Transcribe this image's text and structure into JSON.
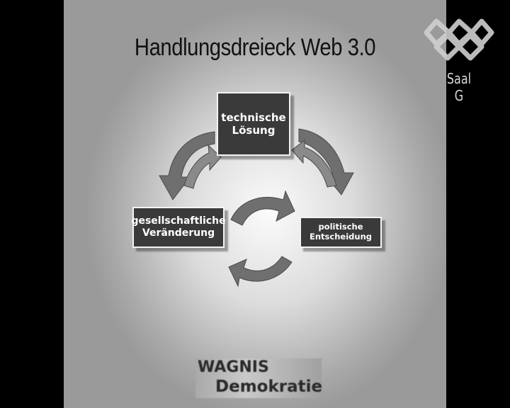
{
  "slide": {
    "title": "Handlungsdreieck Web 3.0",
    "boxes": {
      "technical": {
        "line1": "technische",
        "line2": "Lösung"
      },
      "social": {
        "line1": "gesellschaftliche",
        "line2": "Veränderung"
      },
      "political": {
        "line1": "politische",
        "line2": "Entscheidung"
      }
    },
    "logo": {
      "line1": "WAGNIS",
      "line2": "Demokratie"
    }
  },
  "overlay": {
    "room_label": "Saal G"
  },
  "colors": {
    "box_fill": "#3a3a3a",
    "arrow_fill": "#6e6e6e",
    "background": "#000000"
  }
}
